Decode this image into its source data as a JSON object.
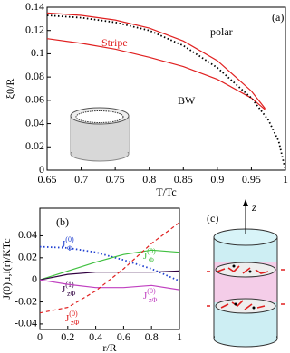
{
  "chart_data": [
    {
      "type": "line",
      "xlabel": "T/Tc",
      "ylabel": "ξ0/R",
      "xlim": [
        0.65,
        1
      ],
      "xticks": [
        0.65,
        0.7,
        0.75,
        0.8,
        0.85,
        0.9,
        0.95,
        1
      ],
      "ylim": [
        0,
        0.14
      ],
      "yticks": [
        0,
        0.02,
        0.04,
        0.06,
        0.08,
        0.1,
        0.12,
        0.14
      ],
      "annotations": [
        {
          "text": "polar",
          "color": "#000000"
        },
        {
          "text": "Stripe",
          "color": "#e02020"
        },
        {
          "text": "BW",
          "color": "#000000"
        },
        {
          "text": "(a)",
          "color": "#000000"
        }
      ],
      "series": [
        {
          "color": "#e02020",
          "dash": "solid",
          "x": [
            0.65,
            0.7,
            0.75,
            0.8,
            0.85,
            0.9,
            0.95,
            0.97
          ],
          "values": [
            0.135,
            0.133,
            0.129,
            0.122,
            0.111,
            0.094,
            0.068,
            0.053
          ]
        },
        {
          "color": "#e02020",
          "dash": "solid",
          "x": [
            0.65,
            0.7,
            0.75,
            0.8,
            0.85,
            0.9,
            0.95,
            0.97
          ],
          "values": [
            0.113,
            0.109,
            0.104,
            0.097,
            0.089,
            0.078,
            0.062,
            0.052
          ]
        },
        {
          "color": "#000000",
          "dash": "dotted",
          "x": [
            0.65,
            0.7,
            0.75,
            0.8,
            0.85,
            0.9,
            0.95,
            0.975,
            0.99,
            1
          ],
          "values": [
            0.133,
            0.131,
            0.127,
            0.12,
            0.107,
            0.088,
            0.062,
            0.043,
            0.025,
            0
          ]
        }
      ]
    },
    {
      "type": "line",
      "xlabel": "r/R",
      "ylabel": "J(0)μ,i(r)/KTc",
      "xlim": [
        0,
        1
      ],
      "xticks": [
        0,
        0.2,
        0.4,
        0.6,
        0.8,
        1
      ],
      "ylim": [
        -0.045,
        0.065
      ],
      "yticks": [
        -0.04,
        -0.02,
        0,
        0.02,
        0.04
      ],
      "annotations": [
        {
          "text": "(b)",
          "color": "#000000"
        }
      ],
      "series": [
        {
          "label": {
            "base": "J",
            "sup": "(0)",
            "sub": "Φ"
          },
          "color": "#2040d0",
          "dash": "dotted",
          "x": [
            0,
            0.2,
            0.4,
            0.6,
            0.8,
            1
          ],
          "values": [
            0.03,
            0.029,
            0.025,
            0.018,
            0.01,
            -0.001
          ]
        },
        {
          "label": {
            "base": "J",
            "sup": "(0)",
            "sub": "Φ"
          },
          "color": "#40c040",
          "dash": "solid",
          "x": [
            0,
            0.2,
            0.4,
            0.6,
            0.8,
            1
          ],
          "values": [
            0,
            0.008,
            0.016,
            0.023,
            0.027,
            0.025
          ]
        },
        {
          "label": {
            "base": "J",
            "sup": "(1)",
            "sub": "zΦ"
          },
          "color": "#300040",
          "dash": "solid",
          "x": [
            0,
            0.2,
            0.4,
            0.6,
            0.8,
            1
          ],
          "values": [
            0,
            0.005,
            0.007,
            0.007,
            0.007,
            0.008
          ]
        },
        {
          "label": {
            "base": "J",
            "sup": "(0)",
            "sub": "zΦ"
          },
          "color": "#c040c0",
          "dash": "solid",
          "x": [
            0,
            0.2,
            0.4,
            0.6,
            0.8,
            1
          ],
          "values": [
            0,
            -0.004,
            -0.007,
            -0.007,
            -0.005,
            -0.009
          ]
        },
        {
          "label": {
            "base": "J",
            "sup": "(0)",
            "sub": "zΦ"
          },
          "color": "#e02020",
          "dash": "dashed",
          "x": [
            0,
            0.2,
            0.4,
            0.6,
            0.8,
            1
          ],
          "values": [
            -0.03,
            -0.025,
            -0.01,
            0.01,
            0.033,
            0.052
          ]
        }
      ]
    }
  ],
  "diagram": {
    "label": "(c)",
    "axis": "z"
  }
}
